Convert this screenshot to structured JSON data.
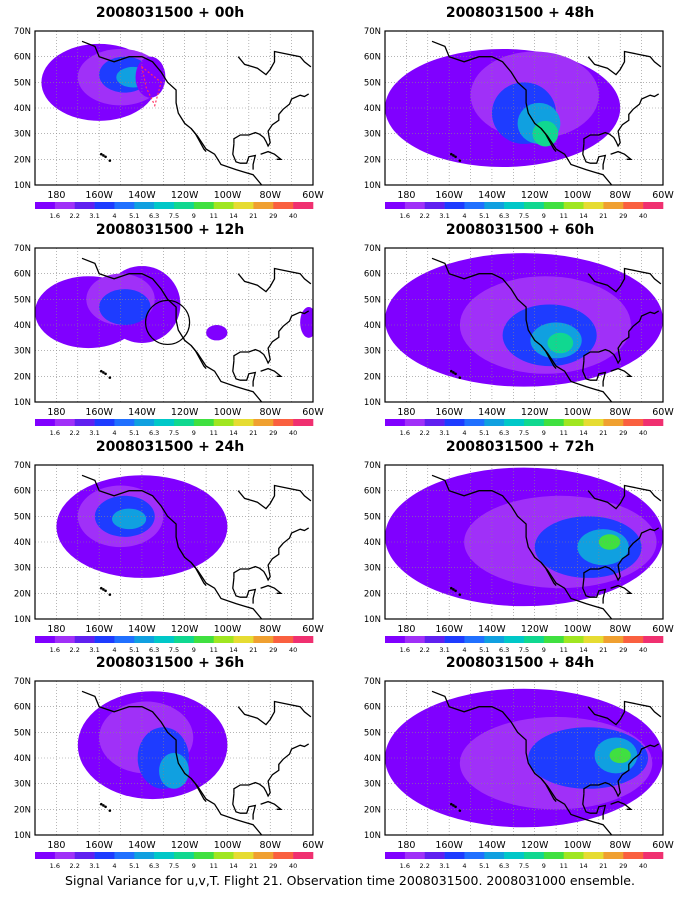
{
  "footer": "Signal Variance for u,v,T. Flight 21. Observation time 2008031500. 2008031000 ensemble.",
  "colorbar": {
    "labels": [
      "1.6",
      "2.2",
      "3.1",
      "4",
      "5.1",
      "6.3",
      "7.5",
      "9",
      "11",
      "14",
      "21",
      "29",
      "40"
    ],
    "colors": [
      "#8000ff",
      "#a030f8",
      "#6020f0",
      "#1e3cff",
      "#2070ff",
      "#10a0e0",
      "#00c8c8",
      "#10d890",
      "#40e040",
      "#a0e620",
      "#e6dc32",
      "#f0a030",
      "#fa6040",
      "#f03070"
    ]
  },
  "axes": {
    "lat_labels": [
      "10N",
      "20N",
      "30N",
      "40N",
      "50N",
      "60N",
      "70N"
    ],
    "lon_labels": [
      "180",
      "160W",
      "140W",
      "120W",
      "100W",
      "80W",
      "60W"
    ]
  },
  "map": {
    "type": "contour-fill",
    "lon_range": [
      -190,
      -60
    ],
    "lat_range": [
      10,
      70
    ],
    "grid": true
  },
  "panels": [
    {
      "title": "2008031500 + 00h"
    },
    {
      "title": "2008031500 + 48h"
    },
    {
      "title": "2008031500 + 12h"
    },
    {
      "title": "2008031500 + 60h"
    },
    {
      "title": "2008031500 + 24h"
    },
    {
      "title": "2008031500 + 72h"
    },
    {
      "title": "2008031500 + 36h"
    },
    {
      "title": "2008031500 + 84h"
    }
  ]
}
